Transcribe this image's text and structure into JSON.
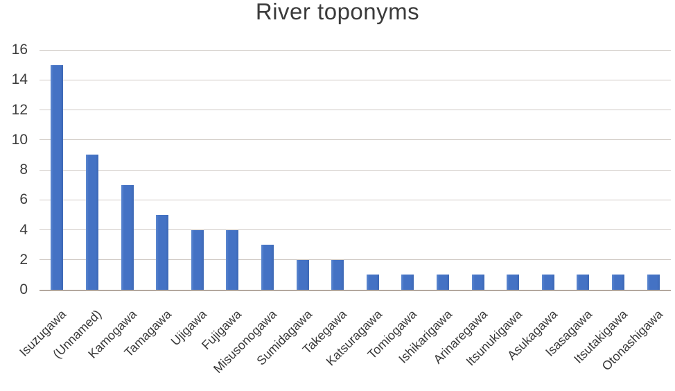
{
  "chart_data": {
    "type": "bar",
    "title": "River toponyms",
    "categories": [
      "Isuzugawa",
      "(Unnamed)",
      "Kamogawa",
      "Tamagawa",
      "Ujigawa",
      "Fujigawa",
      "Misusonogawa",
      "Sumidagawa",
      "Takegawa",
      "Katsuragawa",
      "Tomiogawa",
      "Ishikarigawa",
      "Arinaregawa",
      "Itsunukigawa",
      "Asukagawa",
      "Isasagawa",
      "Itsutakigawa",
      "Otonashigawa"
    ],
    "values": [
      15,
      9,
      7,
      5,
      4,
      4,
      3,
      2,
      2,
      1,
      1,
      1,
      1,
      1,
      1,
      1,
      1,
      1
    ],
    "xlabel": "",
    "ylabel": "",
    "ylim": [
      0,
      16
    ],
    "ytick_step": 2,
    "ytick_labels": [
      "0",
      "2",
      "4",
      "6",
      "8",
      "10",
      "12",
      "14",
      "16"
    ],
    "grid": true,
    "legend": false,
    "x_label_rotation_deg": 45,
    "colors": {
      "bar": "#4472C4",
      "bar_edge": "#3d68b5",
      "gridline": "#cfc9c4",
      "baseline": "#b3a89e",
      "tick_text": "#3d3d3d",
      "title_text": "#3b3b3b",
      "background": "#ffffff"
    }
  }
}
